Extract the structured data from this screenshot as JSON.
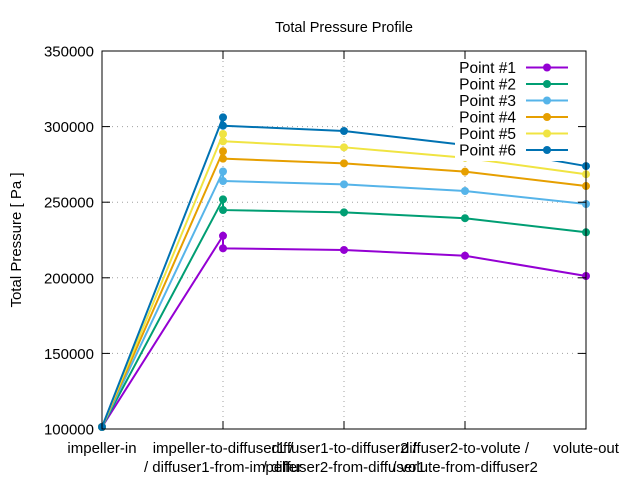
{
  "chart_data": {
    "type": "line",
    "title": "Total Pressure Profile",
    "xlabel": "",
    "ylabel": "Total Pressure [ Pa ]",
    "ylim": [
      100000,
      350000
    ],
    "yticks": [
      100000,
      150000,
      200000,
      250000,
      300000,
      350000
    ],
    "ytick_labels": [
      "100000",
      "150000",
      "200000",
      "250000",
      "300000",
      "350000"
    ],
    "categories": [
      [
        "impeller-in"
      ],
      [
        "impeller-to-diffuser1 /",
        "/ diffuser1-from-impeller"
      ],
      [
        "diffuser1-to-diffuser2 /",
        "/ diffuser2-from-diffuser1"
      ],
      [
        "diffuser2-to-volute /",
        "/ volute-from-diffuser2"
      ],
      [
        "volute-out"
      ]
    ],
    "grid": true,
    "legend_position": "top-right",
    "series": [
      {
        "name": "Point #1",
        "color": "#9400d3",
        "points": [
          [
            0,
            101325
          ],
          [
            1,
            227800
          ],
          [
            1,
            219500
          ],
          [
            2,
            218400
          ],
          [
            3,
            214600
          ],
          [
            4,
            201200
          ]
        ]
      },
      {
        "name": "Point #2",
        "color": "#009e73",
        "points": [
          [
            0,
            101325
          ],
          [
            1,
            251900
          ],
          [
            1,
            244800
          ],
          [
            2,
            243300
          ],
          [
            3,
            239400
          ],
          [
            4,
            230100
          ]
        ]
      },
      {
        "name": "Point #3",
        "color": "#56b4e9",
        "points": [
          [
            0,
            101325
          ],
          [
            1,
            270300
          ],
          [
            1,
            264000
          ],
          [
            2,
            261800
          ],
          [
            3,
            257400
          ],
          [
            4,
            248800
          ]
        ]
      },
      {
        "name": "Point #4",
        "color": "#e69f00",
        "points": [
          [
            0,
            101325
          ],
          [
            1,
            283700
          ],
          [
            1,
            278800
          ],
          [
            2,
            275700
          ],
          [
            3,
            270200
          ],
          [
            4,
            260700
          ]
        ]
      },
      {
        "name": "Point #5",
        "color": "#f0e442",
        "points": [
          [
            0,
            101325
          ],
          [
            1,
            295100
          ],
          [
            1,
            290300
          ],
          [
            2,
            286300
          ],
          [
            3,
            279400
          ],
          [
            4,
            268500
          ]
        ]
      },
      {
        "name": "Point #6",
        "color": "#0072b2",
        "points": [
          [
            0,
            101325
          ],
          [
            1,
            306100
          ],
          [
            1,
            300600
          ],
          [
            2,
            297100
          ],
          [
            3,
            287800
          ],
          [
            4,
            273900
          ]
        ]
      }
    ]
  }
}
